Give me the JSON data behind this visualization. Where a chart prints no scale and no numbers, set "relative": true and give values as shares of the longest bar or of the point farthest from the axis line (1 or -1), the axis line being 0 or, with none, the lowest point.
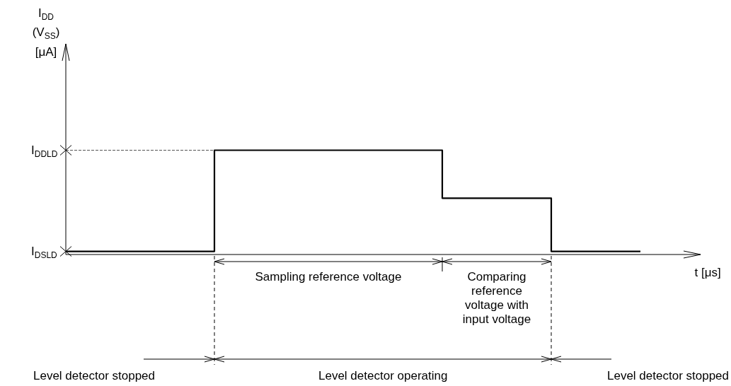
{
  "chart_data": {
    "type": "step",
    "relative": true,
    "xlabel": "t [μs]",
    "categories": [
      null,
      null,
      null,
      null,
      null,
      null,
      null,
      null,
      null,
      null,
      null,
      null,
      null,
      null,
      null,
      null,
      null,
      null,
      null,
      null,
      null,
      null,
      null,
      null,
      null,
      null,
      null,
      null,
      null,
      null,
      null,
      null,
      null,
      null,
      null,
      null,
      null,
      null,
      null,
      null,
      null,
      null,
      null,
      null,
      null,
      null,
      null,
      null,
      null,
      null,
      null,
      null,
      null,
      null,
      null,
      null,
      null,
      null,
      null
    ],
    "series": [
      {
        "color": "#000000",
        "values": [
          0.03,
          0.03,
          0.03,
          0.03,
          0.03,
          0.03,
          0.03,
          0.03,
          0.03,
          0.03,
          0.03,
          0.03,
          0.03,
          0.03,
          0.03,
          1,
          1,
          1,
          1,
          1,
          1,
          1,
          1,
          1,
          1,
          1,
          1,
          1,
          1,
          1,
          1,
          1,
          1,
          1,
          1,
          1,
          1,
          1,
          0.54,
          0.54,
          0.54,
          0.54,
          0.54,
          0.54,
          0.54,
          0.54,
          0.54,
          0.54,
          0.54,
          0.03,
          0.03,
          0.03,
          0.03,
          0.03,
          0.03,
          0.03,
          0.03,
          0.03,
          0.03
        ]
      }
    ],
    "ref_lines": [
      {
        "axis": "y",
        "value": 1,
        "line_style": "dashed",
        "color": "#555555"
      }
    ],
    "marker": "none",
    "annotations": [
      "Sampling reference voltage",
      "Comparing reference voltage with input voltage",
      "Level detector stopped",
      "Level detector operating",
      "Level detector stopped",
      "I$_{DDLD}$",
      "I$_{DSLD}$",
      "I$_{DD}$ (V$_{SS}$) [μA]"
    ]
  }
}
